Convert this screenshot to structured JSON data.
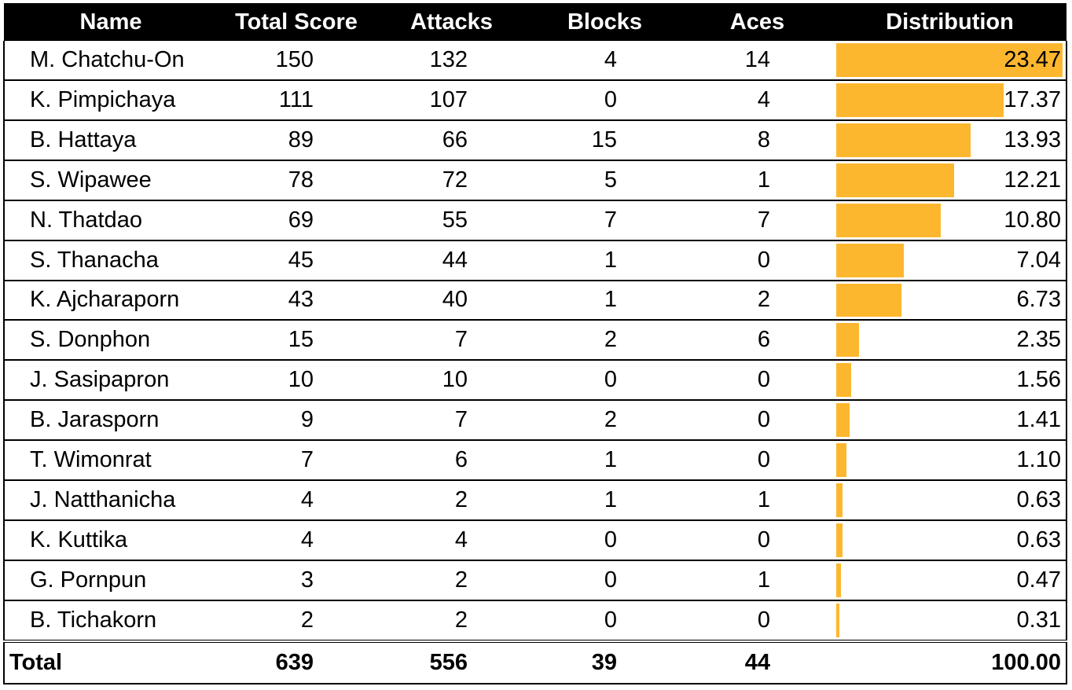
{
  "chart_data": {
    "type": "table",
    "columns": [
      "Name",
      "Total Score",
      "Attacks",
      "Blocks",
      "Aces",
      "Distribution"
    ],
    "rows": [
      {
        "name": "M. Chatchu-On",
        "total": "150",
        "attacks": "132",
        "blocks": "4",
        "aces": "14",
        "distribution": "23.47",
        "share": 23.47
      },
      {
        "name": "K. Pimpichaya",
        "total": "111",
        "attacks": "107",
        "blocks": "0",
        "aces": "4",
        "distribution": "17.37",
        "share": 17.37
      },
      {
        "name": "B. Hattaya",
        "total": "89",
        "attacks": "66",
        "blocks": "15",
        "aces": "8",
        "distribution": "13.93",
        "share": 13.93
      },
      {
        "name": "S. Wipawee",
        "total": "78",
        "attacks": "72",
        "blocks": "5",
        "aces": "1",
        "distribution": "12.21",
        "share": 12.21
      },
      {
        "name": "N. Thatdao",
        "total": "69",
        "attacks": "55",
        "blocks": "7",
        "aces": "7",
        "distribution": "10.80",
        "share": 10.8
      },
      {
        "name": "S. Thanacha",
        "total": "45",
        "attacks": "44",
        "blocks": "1",
        "aces": "0",
        "distribution": "7.04",
        "share": 7.04
      },
      {
        "name": "K. Ajcharaporn",
        "total": "43",
        "attacks": "40",
        "blocks": "1",
        "aces": "2",
        "distribution": "6.73",
        "share": 6.73
      },
      {
        "name": "S. Donphon",
        "total": "15",
        "attacks": "7",
        "blocks": "2",
        "aces": "6",
        "distribution": "2.35",
        "share": 2.35
      },
      {
        "name": "J. Sasipapron",
        "total": "10",
        "attacks": "10",
        "blocks": "0",
        "aces": "0",
        "distribution": "1.56",
        "share": 1.56
      },
      {
        "name": "B. Jarasporn",
        "total": "9",
        "attacks": "7",
        "blocks": "2",
        "aces": "0",
        "distribution": "1.41",
        "share": 1.41
      },
      {
        "name": "T. Wimonrat",
        "total": "7",
        "attacks": "6",
        "blocks": "1",
        "aces": "0",
        "distribution": "1.10",
        "share": 1.1
      },
      {
        "name": "J. Natthanicha",
        "total": "4",
        "attacks": "2",
        "blocks": "1",
        "aces": "1",
        "distribution": "0.63",
        "share": 0.63
      },
      {
        "name": "K. Kuttika",
        "total": "4",
        "attacks": "4",
        "blocks": "0",
        "aces": "0",
        "distribution": "0.63",
        "share": 0.63
      },
      {
        "name": "G. Pornpun",
        "total": "3",
        "attacks": "2",
        "blocks": "0",
        "aces": "1",
        "distribution": "0.47",
        "share": 0.47
      },
      {
        "name": "B. Tichakorn",
        "total": "2",
        "attacks": "2",
        "blocks": "0",
        "aces": "0",
        "distribution": "0.31",
        "share": 0.31
      }
    ],
    "total": {
      "label": "Total",
      "total": "639",
      "attacks": "556",
      "blocks": "39",
      "aces": "44",
      "distribution": "100.00"
    },
    "bar_max": 23.47,
    "bar_color": "#FDB72F",
    "header_background": "#000000",
    "header_text_color": "#FFFFFF"
  }
}
